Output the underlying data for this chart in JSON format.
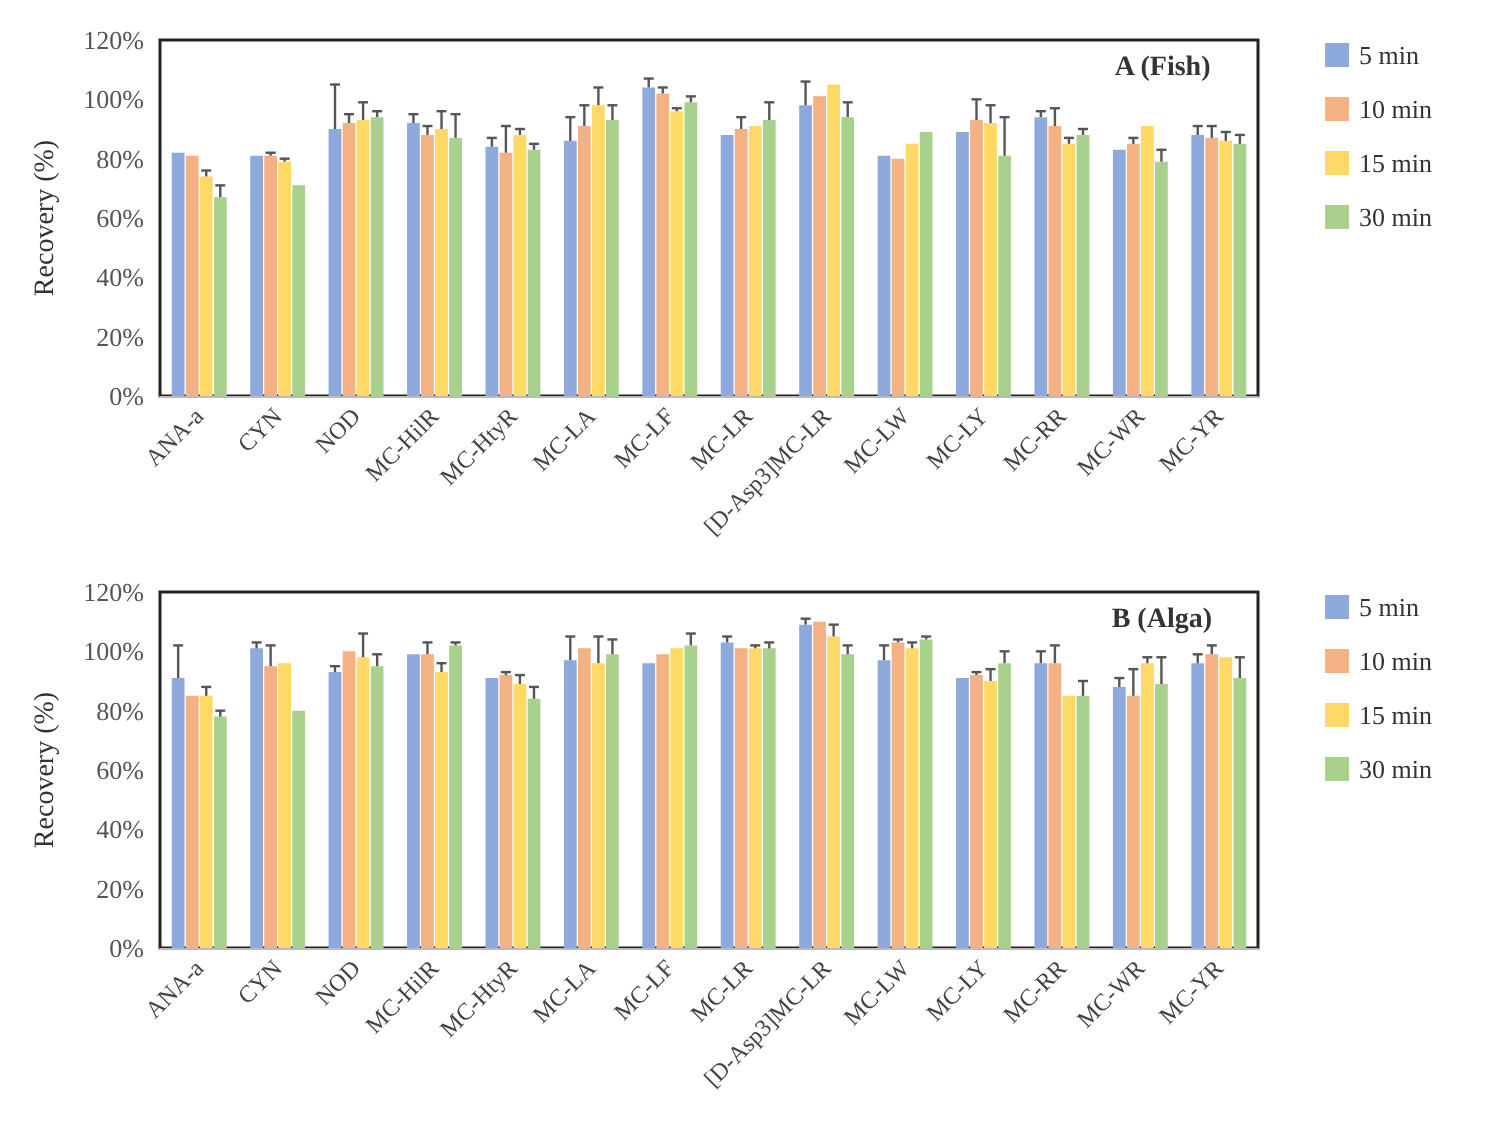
{
  "chart_data": [
    {
      "type": "bar",
      "title": "A (Fish)",
      "ylabel": "Recovery (%)",
      "categories": [
        "ANA-a",
        "CYN",
        "NOD",
        "MC-HilR",
        "MC-HtyR",
        "MC-LA",
        "MC-LF",
        "MC-LR",
        "[D-Asp3]MC-LR",
        "MC-LW",
        "MC-LY",
        "MC-RR",
        "MC-WR",
        "MC-YR"
      ],
      "series": [
        {
          "name": "5 min",
          "color": "#8eaadc",
          "values": [
            82,
            81,
            90,
            92,
            84,
            86,
            104,
            88,
            98,
            81,
            89,
            94,
            83,
            88
          ],
          "errors": [
            null,
            null,
            [
              90,
              105
            ],
            [
              92,
              95
            ],
            [
              84,
              87
            ],
            [
              86,
              94
            ],
            [
              104,
              107
            ],
            null,
            [
              98,
              106
            ],
            null,
            null,
            [
              94,
              96
            ],
            null,
            [
              88,
              91
            ]
          ]
        },
        {
          "name": "10 min",
          "color": "#f4b183",
          "values": [
            81,
            81,
            92,
            88,
            82,
            91,
            102,
            90,
            101,
            80,
            93,
            91,
            85,
            87
          ],
          "errors": [
            null,
            [
              81,
              82
            ],
            [
              92,
              95
            ],
            [
              88,
              91
            ],
            [
              82,
              91
            ],
            [
              91,
              98
            ],
            [
              102,
              104
            ],
            [
              90,
              94
            ],
            null,
            null,
            [
              93,
              100
            ],
            [
              91,
              97
            ],
            [
              85,
              87
            ],
            [
              87,
              91
            ]
          ]
        },
        {
          "name": "15 min",
          "color": "#ffd966",
          "values": [
            74,
            79,
            93,
            90,
            88,
            98,
            96,
            91,
            105,
            85,
            92,
            85,
            91,
            86
          ],
          "errors": [
            [
              74,
              76
            ],
            [
              79,
              80
            ],
            [
              93,
              99
            ],
            [
              90,
              96
            ],
            [
              88,
              90
            ],
            [
              98,
              104
            ],
            [
              96,
              97
            ],
            null,
            null,
            null,
            [
              92,
              98
            ],
            [
              85,
              87
            ],
            null,
            [
              86,
              89
            ]
          ]
        },
        {
          "name": "30 min",
          "color": "#a9d18e",
          "values": [
            67,
            71,
            94,
            87,
            83,
            93,
            99,
            93,
            94,
            89,
            81,
            88,
            79,
            85
          ],
          "errors": [
            [
              67,
              71
            ],
            null,
            [
              94,
              96
            ],
            [
              87,
              95
            ],
            [
              83,
              85
            ],
            [
              93,
              98
            ],
            [
              99,
              101
            ],
            [
              93,
              99
            ],
            [
              94,
              99
            ],
            null,
            [
              81,
              94
            ],
            [
              88,
              90
            ],
            [
              79,
              83
            ],
            [
              85,
              88
            ]
          ]
        }
      ],
      "ylim": [
        0,
        120
      ],
      "yticks": [
        {
          "value": 0,
          "label": "0%"
        },
        {
          "value": 20,
          "label": "20%"
        },
        {
          "value": 40,
          "label": "40%"
        },
        {
          "value": 60,
          "label": "60%"
        },
        {
          "value": 80,
          "label": "80%"
        },
        {
          "value": 100,
          "label": "100%"
        },
        {
          "value": 120,
          "label": "120%"
        }
      ],
      "legend": "right",
      "grid": false
    },
    {
      "type": "bar",
      "title": "B (Alga)",
      "ylabel": "Recovery (%)",
      "categories": [
        "ANA-a",
        "CYN",
        "NOD",
        "MC-HilR",
        "MC-HtyR",
        "MC-LA",
        "MC-LF",
        "MC-LR",
        "[D-Asp3]MC-LR",
        "MC-LW",
        "MC-LY",
        "MC-RR",
        "MC-WR",
        "MC-YR"
      ],
      "series": [
        {
          "name": "5 min",
          "color": "#8eaadc",
          "values": [
            91,
            101,
            93,
            99,
            91,
            97,
            96,
            103,
            109,
            97,
            91,
            96,
            88,
            96
          ],
          "errors": [
            [
              91,
              102
            ],
            [
              101,
              103
            ],
            [
              93,
              95
            ],
            null,
            null,
            [
              97,
              105
            ],
            null,
            [
              103,
              105
            ],
            [
              109,
              111
            ],
            [
              97,
              102
            ],
            null,
            [
              96,
              100
            ],
            [
              88,
              91
            ],
            [
              96,
              99
            ]
          ]
        },
        {
          "name": "10 min",
          "color": "#f4b183",
          "values": [
            85,
            95,
            100,
            99,
            92,
            101,
            99,
            101,
            110,
            103,
            92,
            96,
            85,
            99
          ],
          "errors": [
            null,
            [
              95,
              102
            ],
            null,
            [
              99,
              103
            ],
            [
              92,
              93
            ],
            null,
            null,
            null,
            null,
            [
              103,
              104
            ],
            [
              92,
              93
            ],
            [
              96,
              102
            ],
            [
              85,
              94
            ],
            [
              99,
              102
            ]
          ]
        },
        {
          "name": "15 min",
          "color": "#ffd966",
          "values": [
            85,
            96,
            98,
            93,
            89,
            96,
            101,
            101,
            105,
            101,
            90,
            85,
            96,
            98
          ],
          "errors": [
            [
              85,
              88
            ],
            null,
            [
              98,
              106
            ],
            [
              93,
              96
            ],
            [
              89,
              92
            ],
            [
              96,
              105
            ],
            null,
            [
              101,
              102
            ],
            [
              105,
              109
            ],
            [
              101,
              103
            ],
            [
              90,
              94
            ],
            null,
            [
              96,
              98
            ],
            null
          ]
        },
        {
          "name": "30 min",
          "color": "#a9d18e",
          "values": [
            78,
            80,
            95,
            102,
            84,
            99,
            102,
            101,
            99,
            104,
            96,
            85,
            89,
            91
          ],
          "errors": [
            [
              78,
              80
            ],
            null,
            [
              95,
              99
            ],
            [
              102,
              103
            ],
            [
              84,
              88
            ],
            [
              99,
              104
            ],
            [
              102,
              106
            ],
            [
              101,
              103
            ],
            [
              99,
              102
            ],
            [
              104,
              105
            ],
            [
              96,
              100
            ],
            [
              85,
              90
            ],
            [
              89,
              98
            ],
            [
              91,
              98
            ]
          ]
        }
      ],
      "ylim": [
        0,
        120
      ],
      "yticks": [
        {
          "value": 0,
          "label": "0%"
        },
        {
          "value": 20,
          "label": "20%"
        },
        {
          "value": 40,
          "label": "40%"
        },
        {
          "value": 60,
          "label": "60%"
        },
        {
          "value": 80,
          "label": "80%"
        },
        {
          "value": 100,
          "label": "100%"
        },
        {
          "value": 120,
          "label": "120%"
        }
      ],
      "legend": "right",
      "grid": false
    }
  ]
}
